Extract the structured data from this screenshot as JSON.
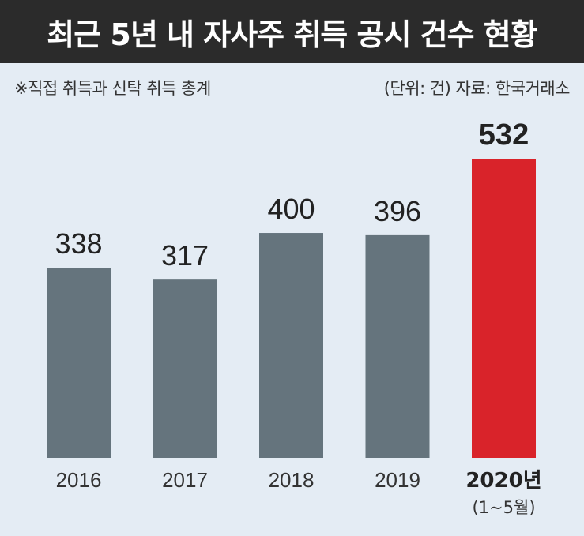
{
  "title": "최근 5년 내 자사주 취득 공시 건수 현황",
  "note": "※직접 취득과 신탁 취득 총계",
  "source": "(단위: 건) 자료: 한국거래소",
  "colors": {
    "bar": "#65747d",
    "highlight": "#d9232a",
    "header_bg": "#2b2b2b",
    "background": "#e4ecf4"
  },
  "chart_data": {
    "type": "bar",
    "categories": [
      "2016",
      "2017",
      "2018",
      "2019",
      "2020년"
    ],
    "category_sublabels": [
      "",
      "",
      "",
      "",
      "(1~5월)"
    ],
    "values": [
      338,
      317,
      400,
      396,
      532
    ],
    "highlight_index": 4,
    "title": "최근 5년 내 자사주 취득 공시 건수 현황",
    "unit": "건",
    "ylim": [
      0,
      532
    ],
    "grid": false,
    "legend": "none"
  }
}
